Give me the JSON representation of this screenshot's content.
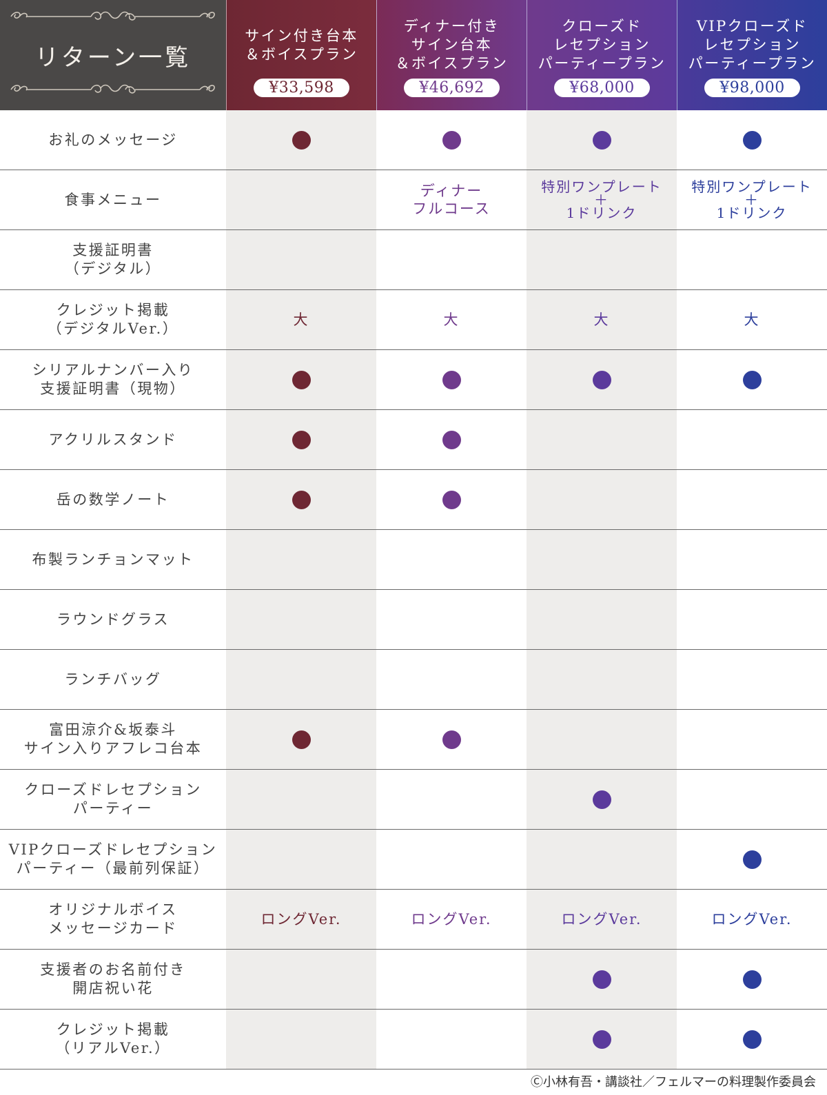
{
  "table": {
    "title": "リターン一覧",
    "plans": [
      {
        "name": "サイン付き台本\n＆ボイスプラン",
        "price": "¥33,598"
      },
      {
        "name": "ディナー付き\nサイン台本\n＆ボイスプラン",
        "price": "¥46,692"
      },
      {
        "name": "クローズド\nレセプション\nパーティープラン",
        "price": "¥68,000"
      },
      {
        "name": "VIPクローズド\nレセプション\nパーティープラン",
        "price": "¥98,000"
      }
    ],
    "rows": [
      {
        "label": "お礼のメッセージ",
        "cells": [
          "●",
          "●",
          "●",
          "●"
        ]
      },
      {
        "label": "食事メニュー",
        "cells": [
          "",
          "ディナー\nフルコース",
          "特別ワンプレート\n＋\n1ドリンク",
          "特別ワンプレート\n＋\n1ドリンク"
        ]
      },
      {
        "label": "支援証明書\n（デジタル）",
        "cells": [
          "",
          "",
          "",
          ""
        ]
      },
      {
        "label": "クレジット掲載\n（デジタルVer.）",
        "cells": [
          "大",
          "大",
          "大",
          "大"
        ]
      },
      {
        "label": "シリアルナンバー入り\n支援証明書（現物）",
        "cells": [
          "●",
          "●",
          "●",
          "●"
        ]
      },
      {
        "label": "アクリルスタンド",
        "cells": [
          "●",
          "●",
          "",
          ""
        ]
      },
      {
        "label": "岳の数学ノート",
        "cells": [
          "●",
          "●",
          "",
          ""
        ]
      },
      {
        "label": "布製ランチョンマット",
        "cells": [
          "",
          "",
          "",
          ""
        ]
      },
      {
        "label": "ラウンドグラス",
        "cells": [
          "",
          "",
          "",
          ""
        ]
      },
      {
        "label": "ランチバッグ",
        "cells": [
          "",
          "",
          "",
          ""
        ]
      },
      {
        "label": "富田涼介&坂泰斗\nサイン入りアフレコ台本",
        "cells": [
          "●",
          "●",
          "",
          ""
        ]
      },
      {
        "label": "クローズドレセプション\nパーティー",
        "cells": [
          "",
          "",
          "●",
          ""
        ]
      },
      {
        "label": "VIPクローズドレセプション\nパーティー（最前列保証）",
        "cells": [
          "",
          "",
          "",
          "●"
        ]
      },
      {
        "label": "オリジナルボイス\nメッセージカード",
        "cells": [
          "ロングVer.",
          "ロングVer.",
          "ロングVer.",
          "ロングVer."
        ]
      },
      {
        "label": "支援者のお名前付き\n開店祝い花",
        "cells": [
          "",
          "",
          "●",
          "●"
        ]
      },
      {
        "label": "クレジット掲載\n（リアルVer.）",
        "cells": [
          "",
          "",
          "●",
          "●"
        ]
      }
    ]
  },
  "footer": {
    "copyright": "Ⓒ小林有吾・講談社／フェルマーの料理製作委員会"
  },
  "colors": {
    "plan1": "#6e2733",
    "plan2": "#6f3a8c",
    "plan3": "#5b3a9c",
    "plan4": "#2d3f9c",
    "header_dark": "#4a4847",
    "shaded_column": "#eeedeb"
  },
  "icons": {
    "available_marker": "filled-circle-icon",
    "ornament": "flourish-divider-icon"
  }
}
